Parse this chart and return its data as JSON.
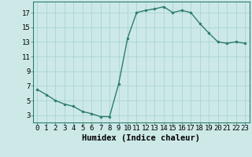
{
  "x": [
    0,
    1,
    2,
    3,
    4,
    5,
    6,
    7,
    8,
    9,
    10,
    11,
    12,
    13,
    14,
    15,
    16,
    17,
    18,
    19,
    20,
    21,
    22,
    23
  ],
  "y": [
    6.5,
    5.8,
    5.0,
    4.5,
    4.2,
    3.5,
    3.2,
    2.8,
    2.8,
    7.2,
    13.5,
    17.0,
    17.3,
    17.5,
    17.8,
    17.0,
    17.3,
    17.0,
    15.5,
    14.2,
    13.0,
    12.8,
    13.0,
    12.8
  ],
  "line_color": "#2e7d6e",
  "bg_color": "#cce9e7",
  "grid_color": "#aad4d1",
  "xlabel": "Humidex (Indice chaleur)",
  "xlim": [
    -0.5,
    23.5
  ],
  "ylim": [
    2,
    18.5
  ],
  "yticks": [
    3,
    5,
    7,
    9,
    11,
    13,
    15,
    17
  ],
  "xtick_labels": [
    "0",
    "1",
    "2",
    "3",
    "4",
    "5",
    "6",
    "7",
    "8",
    "9",
    "10",
    "11",
    "12",
    "13",
    "14",
    "15",
    "16",
    "17",
    "18",
    "19",
    "20",
    "21",
    "22",
    "23"
  ],
  "marker_size": 2.0,
  "line_width": 1.0,
  "xlabel_fontsize": 7.5,
  "tick_fontsize": 6.5
}
